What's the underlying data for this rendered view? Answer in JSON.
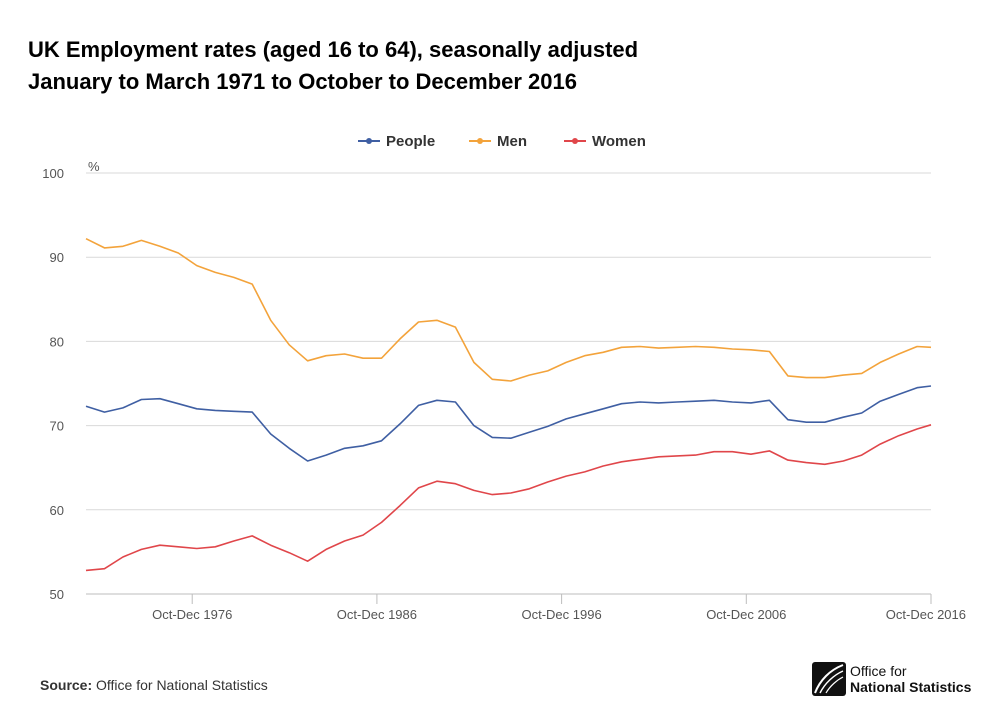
{
  "title": {
    "line1": "UK Employment rates (aged 16 to 64), seasonally adjusted",
    "line2": "January to March 1971 to October to December 2016"
  },
  "source": {
    "label": "Source:",
    "text": "Office for National Statistics"
  },
  "logo": {
    "line1": "Office for",
    "line2": "National Statistics"
  },
  "colors": {
    "people": "#3f5fa3",
    "men": "#f3a33b",
    "women": "#e0464a",
    "grid": "#d9d9d9",
    "axis_text": "#555555"
  },
  "chart_data": {
    "type": "line",
    "title": "UK Employment rates (aged 16 to 64), seasonally adjusted",
    "ylabel": "%",
    "xlabel": "",
    "ylim": [
      50,
      100
    ],
    "xlim": [
      1971.0,
      2016.75
    ],
    "yticks": [
      100,
      90,
      80,
      70,
      60,
      50
    ],
    "xticks": [
      {
        "label": "Oct-Dec 1976",
        "x": 1976.75
      },
      {
        "label": "Oct-Dec 1986",
        "x": 1986.75
      },
      {
        "label": "Oct-Dec 1996",
        "x": 1996.75
      },
      {
        "label": "Oct-Dec 2006",
        "x": 2006.75
      },
      {
        "label": "Oct-Dec 2016",
        "x": 2016.75
      }
    ],
    "legend_position": "top-center",
    "grid": true,
    "series": [
      {
        "name": "People",
        "color": "#3f5fa3",
        "points": [
          [
            1971.0,
            72.3
          ],
          [
            1972.0,
            71.6
          ],
          [
            1973.0,
            72.1
          ],
          [
            1974.0,
            73.1
          ],
          [
            1975.0,
            73.2
          ],
          [
            1976.0,
            72.6
          ],
          [
            1977.0,
            72.0
          ],
          [
            1978.0,
            71.8
          ],
          [
            1979.0,
            71.7
          ],
          [
            1980.0,
            71.6
          ],
          [
            1981.0,
            69.0
          ],
          [
            1982.0,
            67.3
          ],
          [
            1983.0,
            65.8
          ],
          [
            1984.0,
            66.5
          ],
          [
            1985.0,
            67.3
          ],
          [
            1986.0,
            67.6
          ],
          [
            1987.0,
            68.2
          ],
          [
            1988.0,
            70.2
          ],
          [
            1989.0,
            72.4
          ],
          [
            1990.0,
            73.0
          ],
          [
            1991.0,
            72.8
          ],
          [
            1992.0,
            70.0
          ],
          [
            1993.0,
            68.6
          ],
          [
            1994.0,
            68.5
          ],
          [
            1995.0,
            69.2
          ],
          [
            1996.0,
            69.9
          ],
          [
            1997.0,
            70.8
          ],
          [
            1998.0,
            71.4
          ],
          [
            1999.0,
            72.0
          ],
          [
            2000.0,
            72.6
          ],
          [
            2001.0,
            72.8
          ],
          [
            2002.0,
            72.7
          ],
          [
            2003.0,
            72.8
          ],
          [
            2004.0,
            72.9
          ],
          [
            2005.0,
            73.0
          ],
          [
            2006.0,
            72.8
          ],
          [
            2007.0,
            72.7
          ],
          [
            2008.0,
            73.0
          ],
          [
            2009.0,
            70.7
          ],
          [
            2010.0,
            70.4
          ],
          [
            2011.0,
            70.4
          ],
          [
            2012.0,
            71.0
          ],
          [
            2013.0,
            71.5
          ],
          [
            2014.0,
            72.9
          ],
          [
            2015.0,
            73.7
          ],
          [
            2016.0,
            74.5
          ],
          [
            2016.75,
            74.7
          ]
        ]
      },
      {
        "name": "Men",
        "color": "#f3a33b",
        "points": [
          [
            1971.0,
            92.2
          ],
          [
            1972.0,
            91.1
          ],
          [
            1973.0,
            91.3
          ],
          [
            1974.0,
            92.0
          ],
          [
            1975.0,
            91.3
          ],
          [
            1976.0,
            90.5
          ],
          [
            1977.0,
            89.0
          ],
          [
            1978.0,
            88.2
          ],
          [
            1979.0,
            87.6
          ],
          [
            1980.0,
            86.8
          ],
          [
            1981.0,
            82.5
          ],
          [
            1982.0,
            79.6
          ],
          [
            1983.0,
            77.7
          ],
          [
            1984.0,
            78.3
          ],
          [
            1985.0,
            78.5
          ],
          [
            1986.0,
            78.0
          ],
          [
            1987.0,
            78.0
          ],
          [
            1988.0,
            80.3
          ],
          [
            1989.0,
            82.3
          ],
          [
            1990.0,
            82.5
          ],
          [
            1991.0,
            81.7
          ],
          [
            1992.0,
            77.5
          ],
          [
            1993.0,
            75.5
          ],
          [
            1994.0,
            75.3
          ],
          [
            1995.0,
            76.0
          ],
          [
            1996.0,
            76.5
          ],
          [
            1997.0,
            77.5
          ],
          [
            1998.0,
            78.3
          ],
          [
            1999.0,
            78.7
          ],
          [
            2000.0,
            79.3
          ],
          [
            2001.0,
            79.4
          ],
          [
            2002.0,
            79.2
          ],
          [
            2003.0,
            79.3
          ],
          [
            2004.0,
            79.4
          ],
          [
            2005.0,
            79.3
          ],
          [
            2006.0,
            79.1
          ],
          [
            2007.0,
            79.0
          ],
          [
            2008.0,
            78.8
          ],
          [
            2009.0,
            75.9
          ],
          [
            2010.0,
            75.7
          ],
          [
            2011.0,
            75.7
          ],
          [
            2012.0,
            76.0
          ],
          [
            2013.0,
            76.2
          ],
          [
            2014.0,
            77.5
          ],
          [
            2015.0,
            78.5
          ],
          [
            2016.0,
            79.4
          ],
          [
            2016.75,
            79.3
          ]
        ]
      },
      {
        "name": "Women",
        "color": "#e0464a",
        "points": [
          [
            1971.0,
            52.8
          ],
          [
            1972.0,
            53.0
          ],
          [
            1973.0,
            54.4
          ],
          [
            1974.0,
            55.3
          ],
          [
            1975.0,
            55.8
          ],
          [
            1976.0,
            55.6
          ],
          [
            1977.0,
            55.4
          ],
          [
            1978.0,
            55.6
          ],
          [
            1979.0,
            56.3
          ],
          [
            1980.0,
            56.9
          ],
          [
            1981.0,
            55.8
          ],
          [
            1982.0,
            54.9
          ],
          [
            1983.0,
            53.9
          ],
          [
            1984.0,
            55.3
          ],
          [
            1985.0,
            56.3
          ],
          [
            1986.0,
            57.0
          ],
          [
            1987.0,
            58.5
          ],
          [
            1988.0,
            60.5
          ],
          [
            1989.0,
            62.6
          ],
          [
            1990.0,
            63.4
          ],
          [
            1991.0,
            63.1
          ],
          [
            1992.0,
            62.3
          ],
          [
            1993.0,
            61.8
          ],
          [
            1994.0,
            62.0
          ],
          [
            1995.0,
            62.5
          ],
          [
            1996.0,
            63.3
          ],
          [
            1997.0,
            64.0
          ],
          [
            1998.0,
            64.5
          ],
          [
            1999.0,
            65.2
          ],
          [
            2000.0,
            65.7
          ],
          [
            2001.0,
            66.0
          ],
          [
            2002.0,
            66.3
          ],
          [
            2003.0,
            66.4
          ],
          [
            2004.0,
            66.5
          ],
          [
            2005.0,
            66.9
          ],
          [
            2006.0,
            66.9
          ],
          [
            2007.0,
            66.6
          ],
          [
            2008.0,
            67.0
          ],
          [
            2009.0,
            65.9
          ],
          [
            2010.0,
            65.6
          ],
          [
            2011.0,
            65.4
          ],
          [
            2012.0,
            65.8
          ],
          [
            2013.0,
            66.5
          ],
          [
            2014.0,
            67.8
          ],
          [
            2015.0,
            68.8
          ],
          [
            2016.0,
            69.6
          ],
          [
            2016.75,
            70.1
          ]
        ]
      }
    ]
  }
}
